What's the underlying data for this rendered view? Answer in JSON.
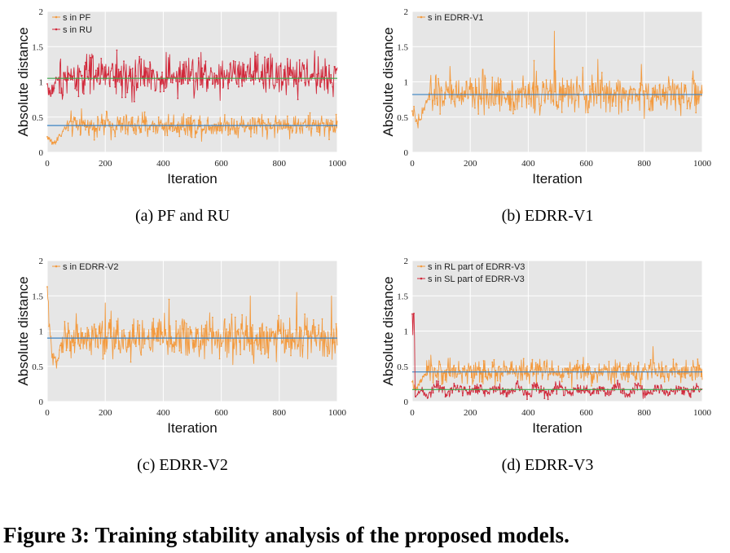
{
  "figure_caption": "Figure 3: Training stability analysis of the proposed models.",
  "colors": {
    "plot_bg": "#e6e6e6",
    "orange": "#f39a3e",
    "red": "#d1283a",
    "mean_line": "#3b83c4",
    "green_line": "#3aa64a"
  },
  "chart_data": [
    {
      "type": "line",
      "caption": "(a)  PF and RU",
      "xlabel": "Iteration",
      "ylabel": "Absolute distance",
      "xlim": [
        0,
        1000
      ],
      "ylim": [
        0,
        2
      ],
      "x_ticks": [
        "0",
        "200",
        "400",
        "600",
        "800",
        "1000"
      ],
      "y_ticks": [
        "0",
        "0.5",
        "1",
        "1.5",
        "2"
      ],
      "grid": true,
      "legend_position": "top-left",
      "series": [
        {
          "name": "s in PF",
          "color": "orange",
          "mean": 0.38,
          "noise": 0.08,
          "start": 0.22,
          "dip": 0.12,
          "settle": 70,
          "spikes": [
            [
              118,
              0.62
            ],
            [
              205,
              0.58
            ],
            [
              470,
              0.55
            ],
            [
              850,
              0.5
            ]
          ],
          "mean_color": "mean_line"
        },
        {
          "name": "s in RU",
          "color": "red",
          "mean": 1.08,
          "noise": 0.14,
          "start": 0.95,
          "dip": 0.82,
          "settle": 40,
          "spikes": [
            [
              240,
              1.45
            ],
            [
              270,
              0.78
            ],
            [
              300,
              0.72
            ],
            [
              410,
              1.42
            ],
            [
              530,
              1.42
            ],
            [
              770,
              1.4
            ]
          ],
          "mean_color": "green_line",
          "mean_value": 1.05
        }
      ]
    },
    {
      "type": "line",
      "caption": "(b)  EDRR-V1",
      "xlabel": "Iteration",
      "ylabel": "Absolute distance",
      "xlim": [
        0,
        1000
      ],
      "ylim": [
        0,
        2
      ],
      "x_ticks": [
        "0",
        "200",
        "400",
        "600",
        "800",
        "1000"
      ],
      "y_ticks": [
        "0",
        "0.5",
        "1",
        "1.5",
        "2"
      ],
      "grid": true,
      "legend_position": "top-left",
      "series": [
        {
          "name": "s in EDRR-V1",
          "color": "orange",
          "mean": 0.82,
          "noise": 0.13,
          "start": 0.6,
          "dip": 0.38,
          "settle": 60,
          "spikes": [
            [
              130,
              1.22
            ],
            [
              243,
              1.18
            ],
            [
              420,
              1.3
            ],
            [
              490,
              1.72
            ],
            [
              640,
              1.32
            ],
            [
              790,
              1.25
            ]
          ],
          "mean_color": "mean_line"
        }
      ]
    },
    {
      "type": "line",
      "caption": "(c)  EDRR-V2",
      "xlabel": "Iteration",
      "ylabel": "Absolute distance",
      "xlim": [
        0,
        1000
      ],
      "ylim": [
        0,
        2
      ],
      "x_ticks": [
        "0",
        "200",
        "400",
        "600",
        "800",
        "1000"
      ],
      "y_ticks": [
        "0",
        "0.5",
        "1",
        "1.5",
        "2"
      ],
      "grid": true,
      "legend_position": "top-left",
      "series": [
        {
          "name": "s in EDRR-V2",
          "color": "orange",
          "mean": 0.9,
          "noise": 0.16,
          "start": 1.55,
          "dip": 0.5,
          "settle": 60,
          "spikes": [
            [
              100,
              1.25
            ],
            [
              200,
              1.4
            ],
            [
              420,
              1.45
            ],
            [
              700,
              1.5
            ],
            [
              860,
              1.55
            ],
            [
              980,
              1.5
            ]
          ],
          "mean_color": "mean_line"
        }
      ]
    },
    {
      "type": "line",
      "caption": "(d)  EDRR-V3",
      "xlabel": "Iteration",
      "ylabel": "Absolute distance",
      "xlim": [
        0,
        1000
      ],
      "ylim": [
        0,
        2
      ],
      "x_ticks": [
        "0",
        "200",
        "400",
        "600",
        "800",
        "1000"
      ],
      "y_ticks": [
        "0",
        "0.5",
        "1",
        "1.5",
        "2"
      ],
      "grid": true,
      "legend_position": "top-left",
      "series": [
        {
          "name": "s in RL part of EDRR-V3",
          "color": "orange",
          "mean": 0.42,
          "noise": 0.08,
          "start": 0.25,
          "dip": 0.18,
          "settle": 50,
          "spikes": [
            [
              130,
              0.62
            ],
            [
              250,
              0.58
            ],
            [
              440,
              0.6
            ],
            [
              830,
              0.78
            ],
            [
              900,
              0.6
            ]
          ],
          "mean_color": "mean_line"
        },
        {
          "name": "s in SL part of EDRR-V3",
          "color": "red",
          "mean": 0.16,
          "noise": 0.04,
          "start": 1.25,
          "dip": 0.05,
          "settle": 30,
          "spikes": [
            [
              5,
              1.25
            ],
            [
              8,
              0.9
            ]
          ],
          "mean_color": "green_line",
          "mean_value": 0.17,
          "wave": 0.07
        }
      ]
    }
  ]
}
